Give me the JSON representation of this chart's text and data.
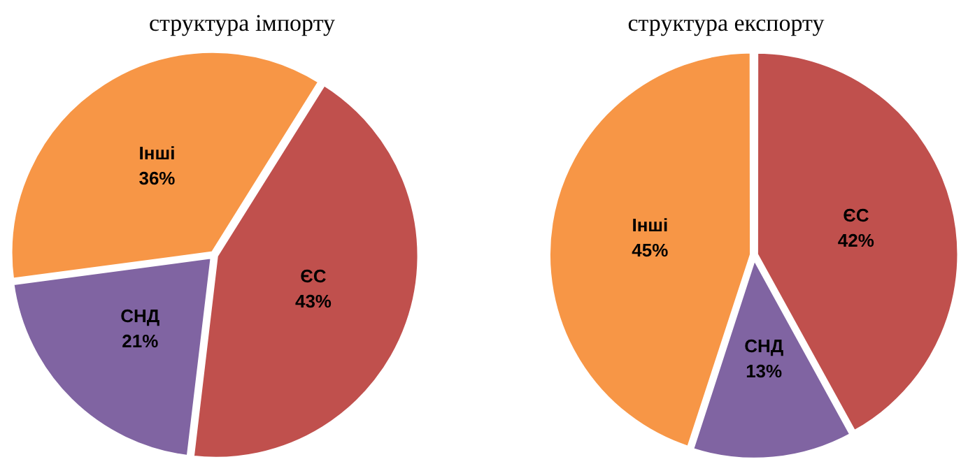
{
  "chart_data": [
    {
      "type": "pie",
      "title": "структура імпорту",
      "categories": [
        "ЄС",
        "СНД",
        "Інші"
      ],
      "values": [
        43,
        21,
        36
      ],
      "colors": [
        "#c0504d",
        "#8064a2",
        "#f79646"
      ],
      "value_labels": [
        "43%",
        "21%",
        "36%"
      ],
      "legend": false
    },
    {
      "type": "pie",
      "title": "структура експорту",
      "categories": [
        "ЄС",
        "СНД",
        "Інші"
      ],
      "values": [
        42,
        13,
        45
      ],
      "colors": [
        "#c0504d",
        "#8064a2",
        "#f79646"
      ],
      "value_labels": [
        "42%",
        "13%",
        "45%"
      ],
      "legend": false
    }
  ]
}
